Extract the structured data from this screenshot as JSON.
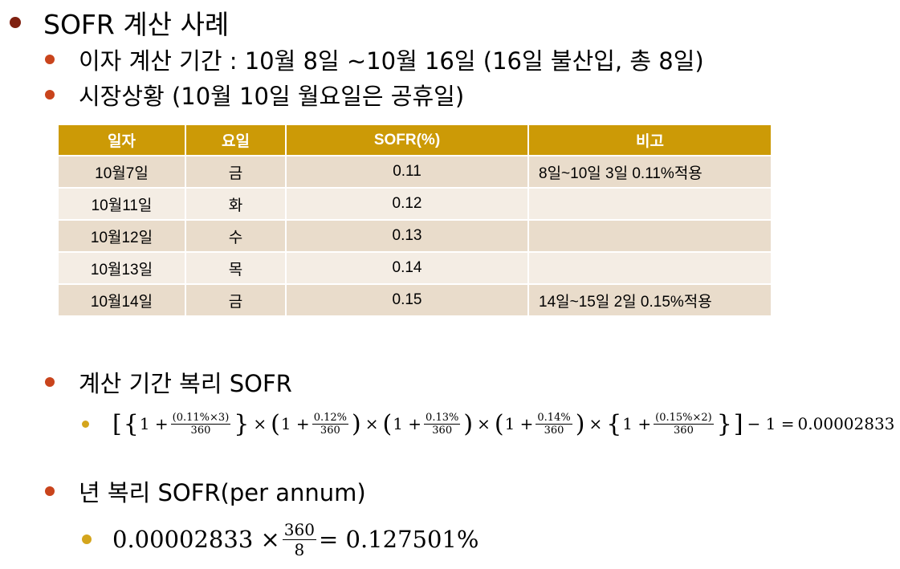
{
  "title": "SOFR 계산 사례",
  "items": [
    "이자 계산 기간 : 10월 8일 ~10월 16일 (16일 불산입, 총 8일)",
    "시장상황 (10월 10일 월요일은 공휴일)"
  ],
  "table": {
    "header": [
      "일자",
      "요일",
      "SOFR(%)",
      "비고"
    ],
    "rows": [
      {
        "date": "10월7일",
        "day": "금",
        "sofr": "0.11",
        "note": "8일~10일 3일 0.11%적용"
      },
      {
        "date": "10월11일",
        "day": "화",
        "sofr": "0.12"
      },
      {
        "date": "10월12일",
        "day": "수",
        "sofr": "0.13"
      },
      {
        "date": "10월13일",
        "day": "목",
        "sofr": "0.14"
      },
      {
        "date": "10월14일",
        "day": "금",
        "sofr": "0.15",
        "note": "14일~15일 2일 0.15%적용"
      }
    ]
  },
  "section2": {
    "heading": "계산 기간 복리 SOFR",
    "formula": {
      "open": "[",
      "close": "]",
      "operator": "×",
      "terms": [
        {
          "open": "{",
          "prefix": "1 +",
          "num": "(0.11%×3)",
          "den": "360",
          "close": "}"
        },
        {
          "open": "(",
          "prefix": "1 +",
          "num": "0.12%",
          "den": "360",
          "close": ")"
        },
        {
          "open": "(",
          "prefix": "1 +",
          "num": "0.13%",
          "den": "360",
          "close": ")"
        },
        {
          "open": "(",
          "prefix": "1 +",
          "num": "0.14%",
          "den": "360",
          "close": ")"
        },
        {
          "open": "{",
          "prefix": "1 +",
          "num": "(0.15%×2)",
          "den": "360",
          "close": "}"
        }
      ],
      "tail": "− 1 =",
      "result": "0.00002833"
    }
  },
  "section3": {
    "heading": "년 복리 SOFR(per annum)",
    "formula": {
      "left": "0.00002833 ×",
      "num": "360",
      "den": "8",
      "result": "= 0.127501%"
    }
  }
}
